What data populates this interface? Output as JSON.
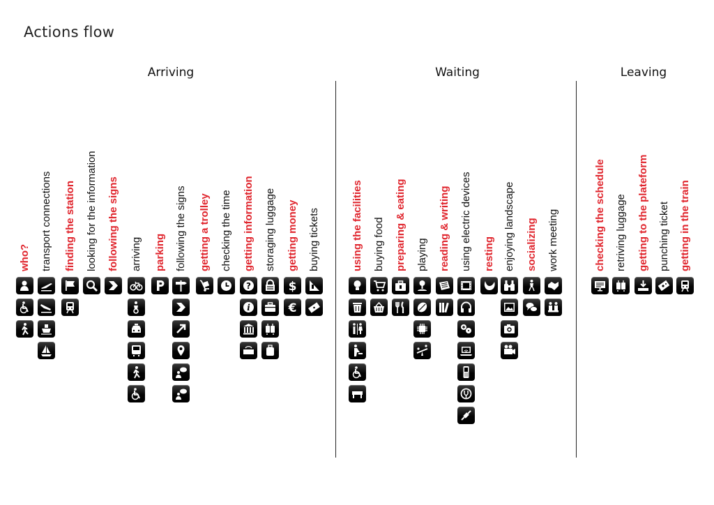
{
  "title": "Actions flow",
  "sections": [
    "Arriving",
    "Waiting",
    "Leaving"
  ],
  "columns": [
    {
      "label": "who?",
      "red": true,
      "icons": [
        "person-icon",
        "wheelchair-icon",
        "walking-icon"
      ]
    },
    {
      "label": "transport connections",
      "red": false,
      "icons": [
        "plane-takeoff-icon",
        "plane-landing-icon",
        "ship-icon",
        "sailboat-icon"
      ]
    },
    {
      "label": "finding the station",
      "red": true,
      "icons": [
        "flag-icon",
        "train-icon"
      ]
    },
    {
      "label": "looking for the information",
      "red": false,
      "icons": [
        "magnifier-icon"
      ]
    },
    {
      "label": "following the signs",
      "red": true,
      "icons": [
        "direction-arrow-icon"
      ]
    },
    {
      "label": "arriving",
      "red": false,
      "icons": [
        "bicycle-icon",
        "motorcycle-icon",
        "taxi-icon",
        "bus-icon",
        "pedestrian-icon",
        "wheelchair-icon"
      ]
    },
    {
      "label": "parking",
      "red": true,
      "icons": [
        "parking-icon"
      ]
    },
    {
      "label": "following the signs",
      "red": false,
      "icons": [
        "signpost-icon",
        "direction-arrow-icon",
        "diagonal-arrow-icon",
        "location-pin-icon",
        "person-info-icon",
        "person-info-icon"
      ]
    },
    {
      "label": "getting a trolley",
      "red": true,
      "icons": [
        "trolley-icon"
      ]
    },
    {
      "label": "checking the time",
      "red": false,
      "icons": [
        "clock-icon"
      ]
    },
    {
      "label": "getting information",
      "red": true,
      "icons": [
        "question-icon",
        "info-icon",
        "bank-icon",
        "hotel-icon"
      ]
    },
    {
      "label": "storaging luggage",
      "red": false,
      "icons": [
        "locker-icon",
        "suitcase-icon",
        "luggage-trolley-icon",
        "luggage-icon"
      ]
    },
    {
      "label": "getting money",
      "red": true,
      "icons": [
        "dollar-icon",
        "euro-icon"
      ]
    },
    {
      "label": "buying tickets",
      "red": false,
      "icons": [
        "ticket-machine-icon",
        "ticket-icon"
      ]
    },
    {
      "label": "using the facilities",
      "red": true,
      "icons": [
        "lightbulb-icon",
        "trash-bin-icon",
        "toilets-icon",
        "baby-change-icon",
        "wheelchair-icon",
        "bench-icon"
      ]
    },
    {
      "label": "buying food",
      "red": false,
      "icons": [
        "shopping-cart-icon",
        "shopping-basket-icon"
      ]
    },
    {
      "label": "preparing & eating",
      "red": true,
      "icons": [
        "kit-bag-icon",
        "cutlery-icon"
      ]
    },
    {
      "label": "playing",
      "red": false,
      "icons": [
        "joystick-icon",
        "ball-icon",
        "chip-icon",
        "seesaw-icon"
      ]
    },
    {
      "label": "reading & writing",
      "red": true,
      "icons": [
        "newspaper-icon",
        "books-icon"
      ]
    },
    {
      "label": "using electric devices",
      "red": false,
      "icons": [
        "film-icon",
        "headphones-icon",
        "gamepad-icon",
        "laptop-wifi-icon",
        "mobile-phone-icon",
        "power-plug-icon",
        "cable-icon"
      ]
    },
    {
      "label": "resting",
      "red": true,
      "icons": [
        "neck-pillow-icon"
      ]
    },
    {
      "label": "enjoying landscape",
      "red": false,
      "icons": [
        "binoculars-icon",
        "picture-icon",
        "camera-icon",
        "video-camera-icon"
      ]
    },
    {
      "label": "socializing",
      "red": true,
      "icons": [
        "people-icon",
        "speech-bubbles-icon"
      ]
    },
    {
      "label": "work meeting",
      "red": false,
      "icons": [
        "handshake-icon",
        "meeting-icon"
      ]
    },
    {
      "label": "checking the schedule",
      "red": true,
      "icons": [
        "schedule-screen-icon"
      ]
    },
    {
      "label": "retriving luggage",
      "red": false,
      "icons": [
        "luggage-trolley-icon"
      ]
    },
    {
      "label": "getting to the plateform",
      "red": true,
      "icons": [
        "platform-down-icon"
      ]
    },
    {
      "label": "punching ticket",
      "red": false,
      "icons": [
        "ticket-punch-icon"
      ]
    },
    {
      "label": "getting in the train",
      "red": true,
      "icons": [
        "train-icon"
      ]
    }
  ]
}
